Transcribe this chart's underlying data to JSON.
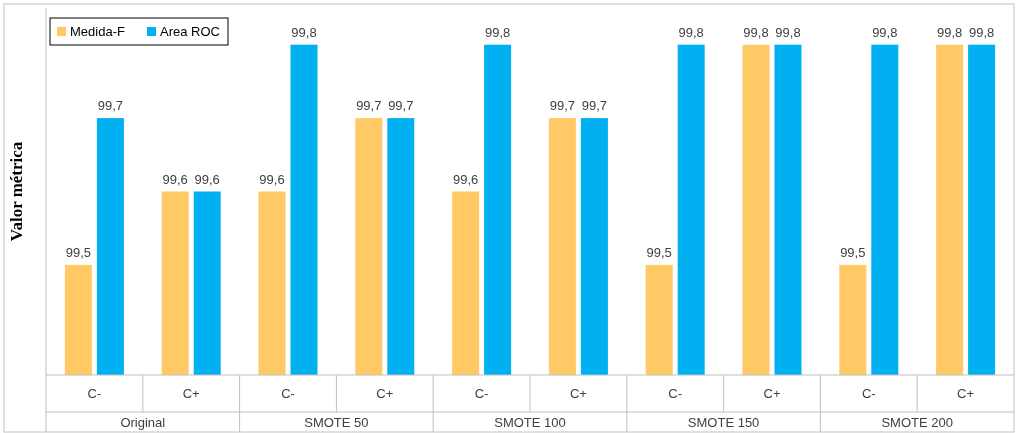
{
  "chart_data": {
    "type": "bar",
    "ylabel": "Valor métrica",
    "categories": [
      "C-",
      "C+",
      "C-",
      "C+",
      "C-",
      "C+",
      "C-",
      "C+",
      "C-",
      "C+"
    ],
    "annotations": [
      "Original",
      "SMOTE 50",
      "SMOTE 100",
      "SMOTE 150",
      "SMOTE 200"
    ],
    "series": [
      {
        "name": "Medida-F",
        "color": "#ffc966",
        "values": [
          99.5,
          99.6,
          99.6,
          99.7,
          99.6,
          99.7,
          99.5,
          99.8,
          99.5,
          99.8
        ],
        "value_labels": [
          "99,5",
          "99,6",
          "99,6",
          "99,7",
          "99,6",
          "99,7",
          "99,5",
          "99,8",
          "99,5",
          "99,8"
        ]
      },
      {
        "name": "Area ROC",
        "color": "#00b0f0",
        "values": [
          99.7,
          99.6,
          99.8,
          99.7,
          99.8,
          99.7,
          99.8,
          99.8,
          99.8,
          99.8
        ],
        "value_labels": [
          "99,7",
          "99,6",
          "99,8",
          "99,7",
          "99,8",
          "99,7",
          "99,8",
          "99,8",
          "99,8",
          "99,8"
        ]
      }
    ],
    "ylim": [
      99.35,
      99.85
    ],
    "legend": "top left"
  }
}
